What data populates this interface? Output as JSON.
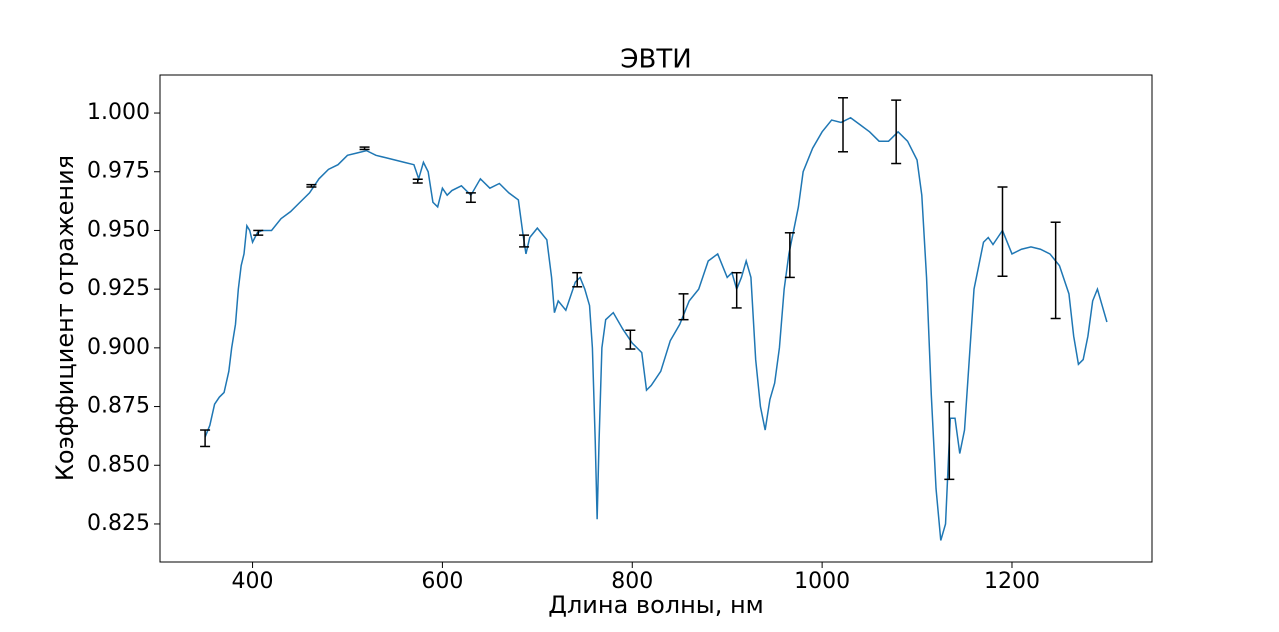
{
  "chart_data": {
    "type": "line",
    "title": "ЭВТИ",
    "x_label": "Длина волны, нм",
    "y_label": "Коэффициент отражения",
    "xlim": [
      302.5,
      1347.5
    ],
    "ylim": [
      0.8088,
      1.0162
    ],
    "xticks": [
      400,
      600,
      800,
      1000,
      1200
    ],
    "yticks": [
      {
        "value": 0.825,
        "label": "0.825"
      },
      {
        "value": 0.85,
        "label": "0.850"
      },
      {
        "value": 0.875,
        "label": "0.875"
      },
      {
        "value": 0.9,
        "label": "0.900"
      },
      {
        "value": 0.925,
        "label": "0.925"
      },
      {
        "value": 0.95,
        "label": "0.950"
      },
      {
        "value": 0.975,
        "label": "0.975"
      },
      {
        "value": 1.0,
        "label": "1.000"
      }
    ],
    "grid": false,
    "series": [
      {
        "color": "#1f77b4",
        "x": [
          350,
          355,
          360,
          365,
          370,
          375,
          378,
          382,
          385,
          388,
          391,
          394,
          397,
          400,
          405,
          410,
          420,
          430,
          440,
          450,
          460,
          470,
          480,
          490,
          500,
          510,
          520,
          530,
          540,
          550,
          560,
          570,
          575,
          580,
          585,
          590,
          595,
          600,
          605,
          610,
          620,
          630,
          640,
          650,
          660,
          670,
          680,
          685,
          688,
          692,
          700,
          710,
          715,
          718,
          722,
          730,
          740,
          745,
          750,
          755,
          758,
          761,
          763,
          765,
          768,
          772,
          780,
          790,
          800,
          810,
          815,
          820,
          830,
          840,
          850,
          860,
          870,
          880,
          890,
          900,
          905,
          910,
          915,
          920,
          925,
          930,
          935,
          940,
          945,
          950,
          955,
          960,
          965,
          970,
          975,
          980,
          990,
          1000,
          1010,
          1020,
          1030,
          1040,
          1050,
          1060,
          1070,
          1080,
          1090,
          1100,
          1105,
          1110,
          1115,
          1120,
          1125,
          1130,
          1135,
          1140,
          1145,
          1150,
          1155,
          1160,
          1165,
          1170,
          1175,
          1180,
          1185,
          1190,
          1195,
          1200,
          1210,
          1220,
          1230,
          1240,
          1250,
          1260,
          1265,
          1270,
          1275,
          1280,
          1285,
          1290,
          1295,
          1300
        ],
        "values": [
          0.862,
          0.867,
          0.876,
          0.879,
          0.881,
          0.89,
          0.9,
          0.91,
          0.925,
          0.935,
          0.94,
          0.952,
          0.95,
          0.945,
          0.949,
          0.95,
          0.95,
          0.955,
          0.958,
          0.962,
          0.966,
          0.972,
          0.976,
          0.978,
          0.982,
          0.983,
          0.984,
          0.982,
          0.981,
          0.98,
          0.979,
          0.978,
          0.972,
          0.979,
          0.975,
          0.962,
          0.96,
          0.968,
          0.965,
          0.967,
          0.969,
          0.965,
          0.972,
          0.968,
          0.97,
          0.966,
          0.963,
          0.948,
          0.94,
          0.947,
          0.951,
          0.946,
          0.93,
          0.915,
          0.92,
          0.916,
          0.928,
          0.93,
          0.925,
          0.918,
          0.9,
          0.86,
          0.827,
          0.86,
          0.9,
          0.912,
          0.915,
          0.908,
          0.902,
          0.898,
          0.882,
          0.884,
          0.89,
          0.903,
          0.91,
          0.92,
          0.925,
          0.937,
          0.94,
          0.93,
          0.932,
          0.925,
          0.93,
          0.937,
          0.93,
          0.895,
          0.875,
          0.865,
          0.878,
          0.885,
          0.9,
          0.925,
          0.94,
          0.95,
          0.96,
          0.975,
          0.985,
          0.992,
          0.997,
          0.996,
          0.998,
          0.995,
          0.992,
          0.988,
          0.988,
          0.992,
          0.988,
          0.98,
          0.965,
          0.93,
          0.88,
          0.84,
          0.818,
          0.825,
          0.87,
          0.87,
          0.855,
          0.865,
          0.895,
          0.925,
          0.935,
          0.945,
          0.947,
          0.944,
          0.947,
          0.95,
          0.945,
          0.94,
          0.942,
          0.943,
          0.942,
          0.94,
          0.935,
          0.923,
          0.905,
          0.893,
          0.895,
          0.905,
          0.92,
          0.925,
          0.918,
          0.911
        ]
      }
    ],
    "errorbars": {
      "color": "#000000",
      "x": [
        350,
        406,
        462,
        518,
        574,
        630,
        686,
        742,
        798,
        854,
        910,
        966,
        1022,
        1078,
        1134,
        1190,
        1246
      ],
      "values": [
        0.8615,
        0.949,
        0.969,
        0.985,
        0.971,
        0.964,
        0.9455,
        0.929,
        0.9035,
        0.9175,
        0.9245,
        0.9395,
        0.995,
        0.992,
        0.8605,
        0.9495,
        0.933
      ],
      "errors": [
        0.0035,
        0.001,
        0.0005,
        0.0005,
        0.0008,
        0.002,
        0.0025,
        0.003,
        0.004,
        0.0055,
        0.0075,
        0.0095,
        0.0115,
        0.0135,
        0.0165,
        0.019,
        0.0205
      ]
    }
  }
}
